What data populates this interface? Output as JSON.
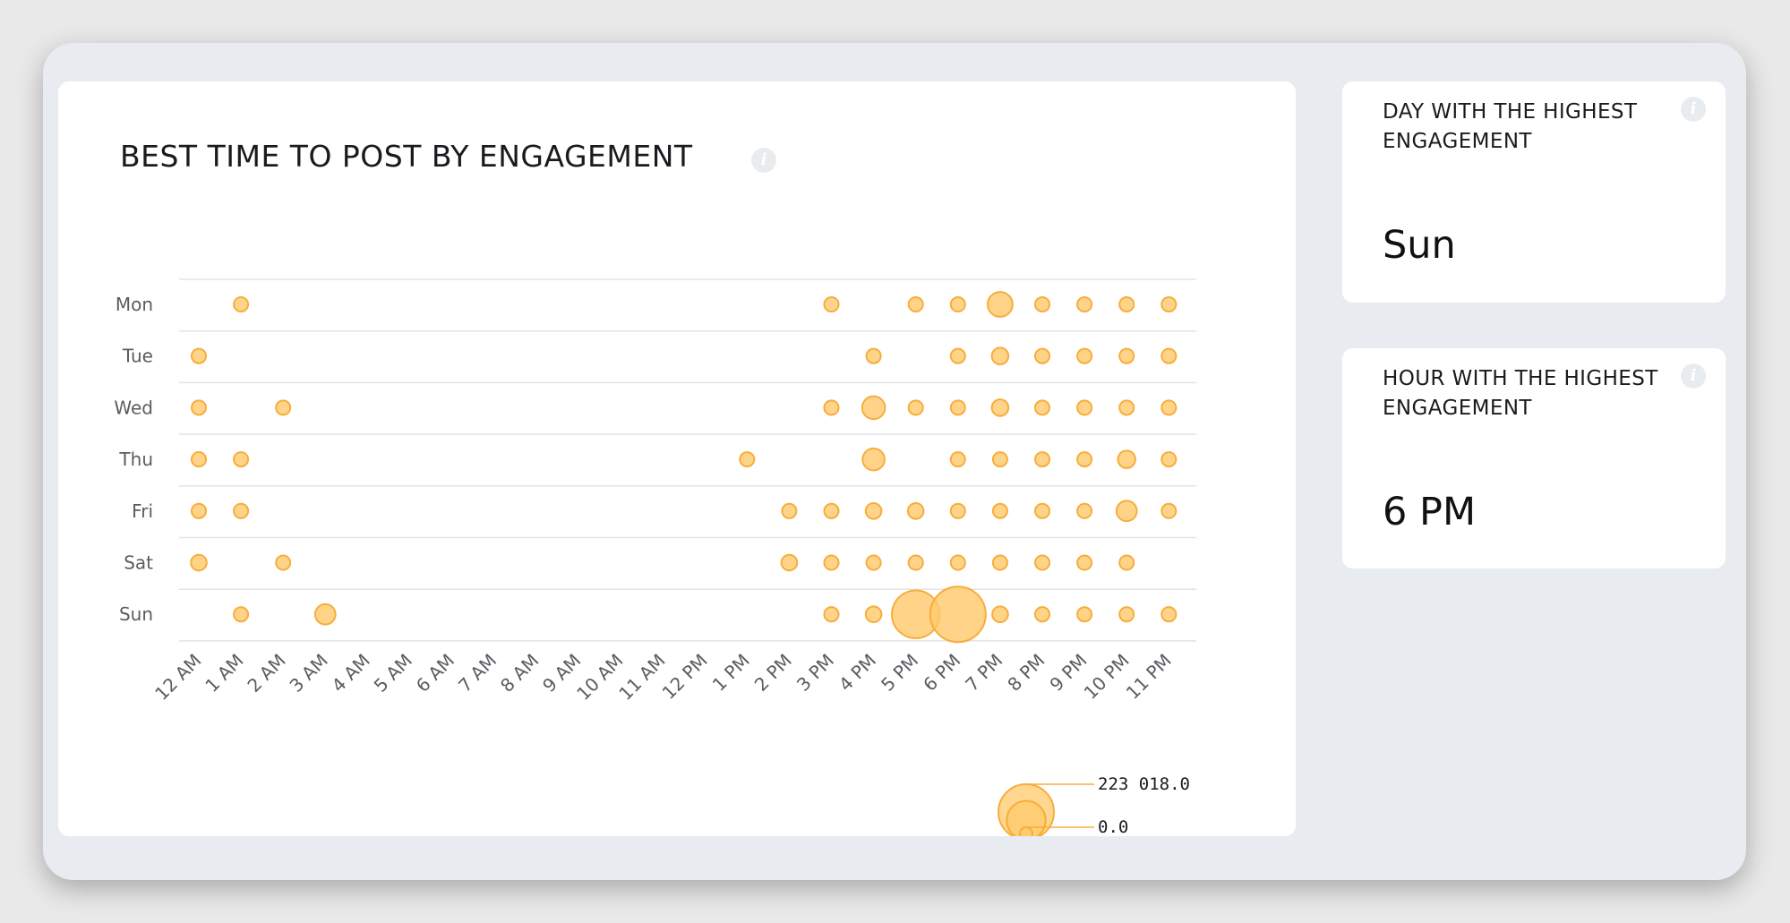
{
  "chart_panel": {
    "title": "BEST TIME TO POST BY ENGAGEMENT",
    "info_icon": "info-icon"
  },
  "chart_data": {
    "type": "bubble",
    "title": "BEST TIME TO POST BY ENGAGEMENT",
    "x_categories": [
      "12 AM",
      "1 AM",
      "2 AM",
      "3 AM",
      "4 AM",
      "5 AM",
      "6 AM",
      "7 AM",
      "8 AM",
      "9 AM",
      "10 AM",
      "11 AM",
      "12 PM",
      "1 PM",
      "2 PM",
      "3 PM",
      "4 PM",
      "5 PM",
      "6 PM",
      "7 PM",
      "8 PM",
      "9 PM",
      "10 PM",
      "11 PM"
    ],
    "y_categories": [
      "Mon",
      "Tue",
      "Wed",
      "Thu",
      "Fri",
      "Sat",
      "Sun"
    ],
    "points": [
      {
        "day": "Mon",
        "hour": "1 AM",
        "value": 12000
      },
      {
        "day": "Mon",
        "hour": "3 PM",
        "value": 15000
      },
      {
        "day": "Mon",
        "hour": "5 PM",
        "value": 15000
      },
      {
        "day": "Mon",
        "hour": "6 PM",
        "value": 15000
      },
      {
        "day": "Mon",
        "hour": "7 PM",
        "value": 45000
      },
      {
        "day": "Mon",
        "hour": "8 PM",
        "value": 15000
      },
      {
        "day": "Mon",
        "hour": "9 PM",
        "value": 15000
      },
      {
        "day": "Mon",
        "hour": "10 PM",
        "value": 15000
      },
      {
        "day": "Mon",
        "hour": "11 PM",
        "value": 15000
      },
      {
        "day": "Tue",
        "hour": "12 AM",
        "value": 15000
      },
      {
        "day": "Tue",
        "hour": "4 PM",
        "value": 15000
      },
      {
        "day": "Tue",
        "hour": "6 PM",
        "value": 15000
      },
      {
        "day": "Tue",
        "hour": "7 PM",
        "value": 20000
      },
      {
        "day": "Tue",
        "hour": "8 PM",
        "value": 15000
      },
      {
        "day": "Tue",
        "hour": "9 PM",
        "value": 15000
      },
      {
        "day": "Tue",
        "hour": "10 PM",
        "value": 15000
      },
      {
        "day": "Tue",
        "hour": "11 PM",
        "value": 15000
      },
      {
        "day": "Wed",
        "hour": "12 AM",
        "value": 12000
      },
      {
        "day": "Wed",
        "hour": "2 AM",
        "value": 12000
      },
      {
        "day": "Wed",
        "hour": "3 PM",
        "value": 15000
      },
      {
        "day": "Wed",
        "hour": "4 PM",
        "value": 38000
      },
      {
        "day": "Wed",
        "hour": "5 PM",
        "value": 15000
      },
      {
        "day": "Wed",
        "hour": "6 PM",
        "value": 12000
      },
      {
        "day": "Wed",
        "hour": "7 PM",
        "value": 20000
      },
      {
        "day": "Wed",
        "hour": "8 PM",
        "value": 12000
      },
      {
        "day": "Wed",
        "hour": "9 PM",
        "value": 15000
      },
      {
        "day": "Wed",
        "hour": "10 PM",
        "value": 15000
      },
      {
        "day": "Wed",
        "hour": "11 PM",
        "value": 15000
      },
      {
        "day": "Thu",
        "hour": "12 AM",
        "value": 15000
      },
      {
        "day": "Thu",
        "hour": "1 AM",
        "value": 12000
      },
      {
        "day": "Thu",
        "hour": "1 PM",
        "value": 13000
      },
      {
        "day": "Thu",
        "hour": "4 PM",
        "value": 35000
      },
      {
        "day": "Thu",
        "hour": "6 PM",
        "value": 13000
      },
      {
        "day": "Thu",
        "hour": "7 PM",
        "value": 13000
      },
      {
        "day": "Thu",
        "hour": "8 PM",
        "value": 13000
      },
      {
        "day": "Thu",
        "hour": "9 PM",
        "value": 13000
      },
      {
        "day": "Thu",
        "hour": "10 PM",
        "value": 22000
      },
      {
        "day": "Thu",
        "hour": "11 PM",
        "value": 13000
      },
      {
        "day": "Fri",
        "hour": "12 AM",
        "value": 15000
      },
      {
        "day": "Fri",
        "hour": "1 AM",
        "value": 15000
      },
      {
        "day": "Fri",
        "hour": "2 PM",
        "value": 15000
      },
      {
        "day": "Fri",
        "hour": "3 PM",
        "value": 15000
      },
      {
        "day": "Fri",
        "hour": "4 PM",
        "value": 18000
      },
      {
        "day": "Fri",
        "hour": "5 PM",
        "value": 18000
      },
      {
        "day": "Fri",
        "hour": "6 PM",
        "value": 15000
      },
      {
        "day": "Fri",
        "hour": "7 PM",
        "value": 13000
      },
      {
        "day": "Fri",
        "hour": "8 PM",
        "value": 13000
      },
      {
        "day": "Fri",
        "hour": "9 PM",
        "value": 13000
      },
      {
        "day": "Fri",
        "hour": "10 PM",
        "value": 30000
      },
      {
        "day": "Fri",
        "hour": "11 PM",
        "value": 13000
      },
      {
        "day": "Sat",
        "hour": "12 AM",
        "value": 18000
      },
      {
        "day": "Sat",
        "hour": "2 AM",
        "value": 12000
      },
      {
        "day": "Sat",
        "hour": "2 PM",
        "value": 18000
      },
      {
        "day": "Sat",
        "hour": "3 PM",
        "value": 15000
      },
      {
        "day": "Sat",
        "hour": "4 PM",
        "value": 15000
      },
      {
        "day": "Sat",
        "hour": "5 PM",
        "value": 15000
      },
      {
        "day": "Sat",
        "hour": "6 PM",
        "value": 15000
      },
      {
        "day": "Sat",
        "hour": "7 PM",
        "value": 13000
      },
      {
        "day": "Sat",
        "hour": "8 PM",
        "value": 13000
      },
      {
        "day": "Sat",
        "hour": "9 PM",
        "value": 13000
      },
      {
        "day": "Sat",
        "hour": "10 PM",
        "value": 13000
      },
      {
        "day": "Sun",
        "hour": "1 AM",
        "value": 12000
      },
      {
        "day": "Sun",
        "hour": "3 AM",
        "value": 30000
      },
      {
        "day": "Sun",
        "hour": "3 PM",
        "value": 15000
      },
      {
        "day": "Sun",
        "hour": "4 PM",
        "value": 18000
      },
      {
        "day": "Sun",
        "hour": "5 PM",
        "value": 165000
      },
      {
        "day": "Sun",
        "hour": "6 PM",
        "value": 223018
      },
      {
        "day": "Sun",
        "hour": "7 PM",
        "value": 18000
      },
      {
        "day": "Sun",
        "hour": "8 PM",
        "value": 15000
      },
      {
        "day": "Sun",
        "hour": "9 PM",
        "value": 12000
      },
      {
        "day": "Sun",
        "hour": "10 PM",
        "value": 13000
      },
      {
        "day": "Sun",
        "hour": "11 PM",
        "value": 15000
      }
    ],
    "size_legend": {
      "max_label": "223 018.0",
      "min_label": "0.0",
      "max_value": 223018,
      "min_value": 0
    },
    "bubble_color": "#ffc96b",
    "bubble_stroke": "#f7ad3c",
    "grid": true
  },
  "stats": [
    {
      "label": "DAY WITH THE HIGHEST ENGAGEMENT",
      "value": "Sun",
      "info_icon": "info-icon"
    },
    {
      "label": "HOUR WITH THE HIGHEST ENGAGEMENT",
      "value": "6 PM",
      "info_icon": "info-icon"
    }
  ]
}
